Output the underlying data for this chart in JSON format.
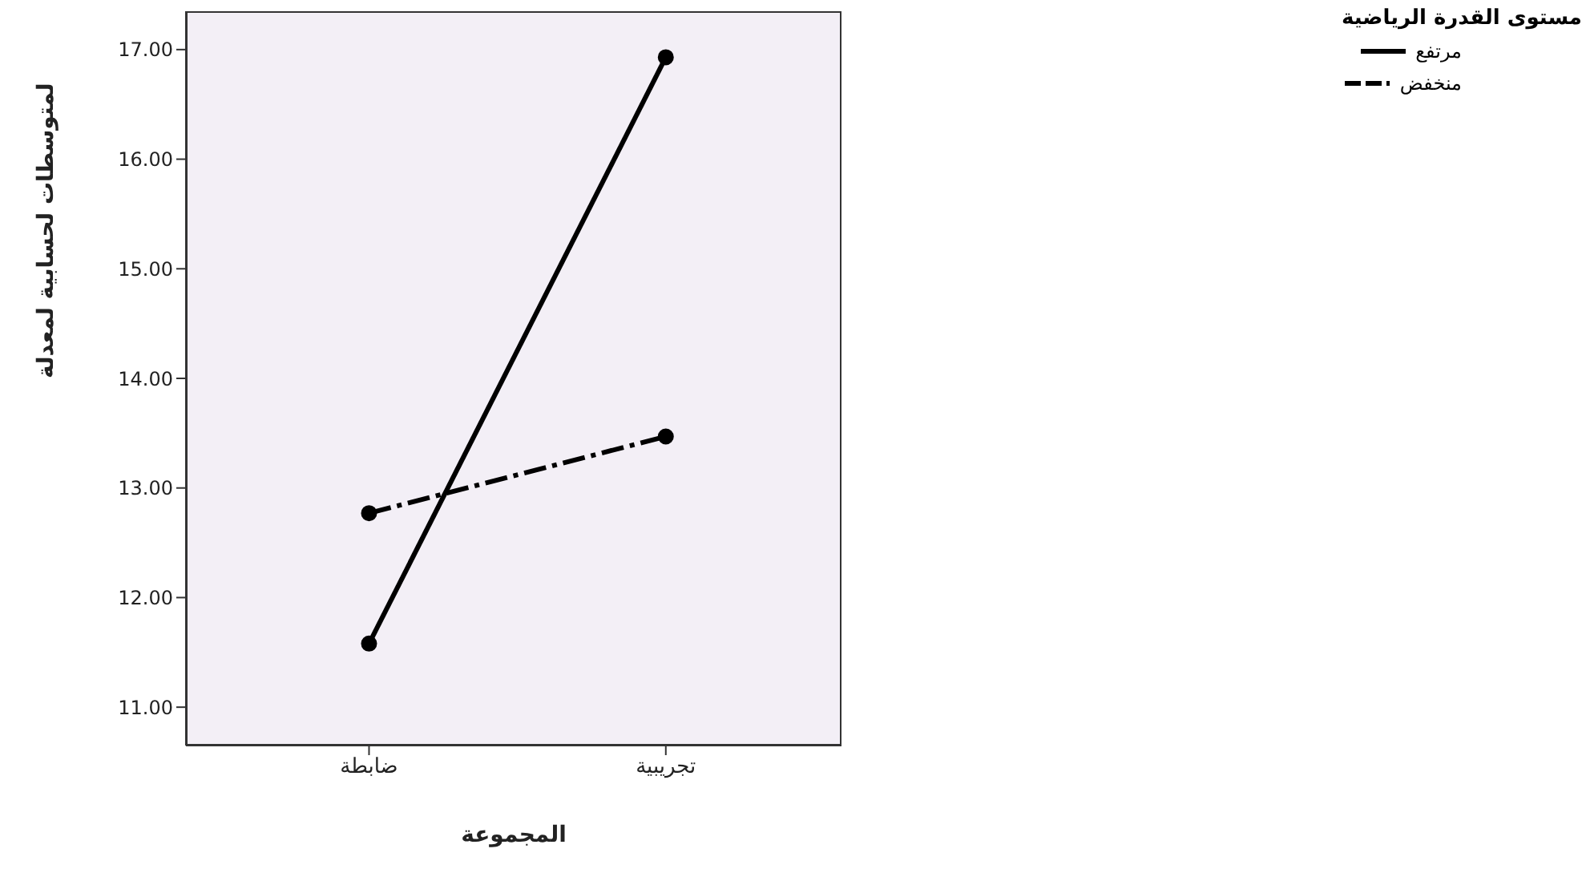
{
  "chart_data": {
    "type": "line",
    "xlabel": "المجموعة",
    "ylabel": "لمتوسطات لحسابية لمعدلة",
    "legend_title": "مستوى القدرة الرياضية",
    "categories": [
      "ضابطة",
      "تجريبية"
    ],
    "series": [
      {
        "name": "مرتفع",
        "color": "#000000",
        "values": [
          11.58,
          16.93
        ],
        "line_style": "solid"
      },
      {
        "name": "منخفض",
        "color": "#000000",
        "values": [
          12.77,
          13.47
        ],
        "line_style": "dashed"
      }
    ],
    "ylim": [
      10.65,
      17.35
    ],
    "yticks": [
      {
        "value": 11,
        "label": "11.00"
      },
      {
        "value": 12,
        "label": "12.00"
      },
      {
        "value": 13,
        "label": "13.00"
      },
      {
        "value": 14,
        "label": "14.00"
      },
      {
        "value": 15,
        "label": "15.00"
      },
      {
        "value": 16,
        "label": "16.00"
      },
      {
        "value": 17,
        "label": "17.00"
      }
    ],
    "grid": false,
    "legend": "top right",
    "marker": "circle"
  }
}
